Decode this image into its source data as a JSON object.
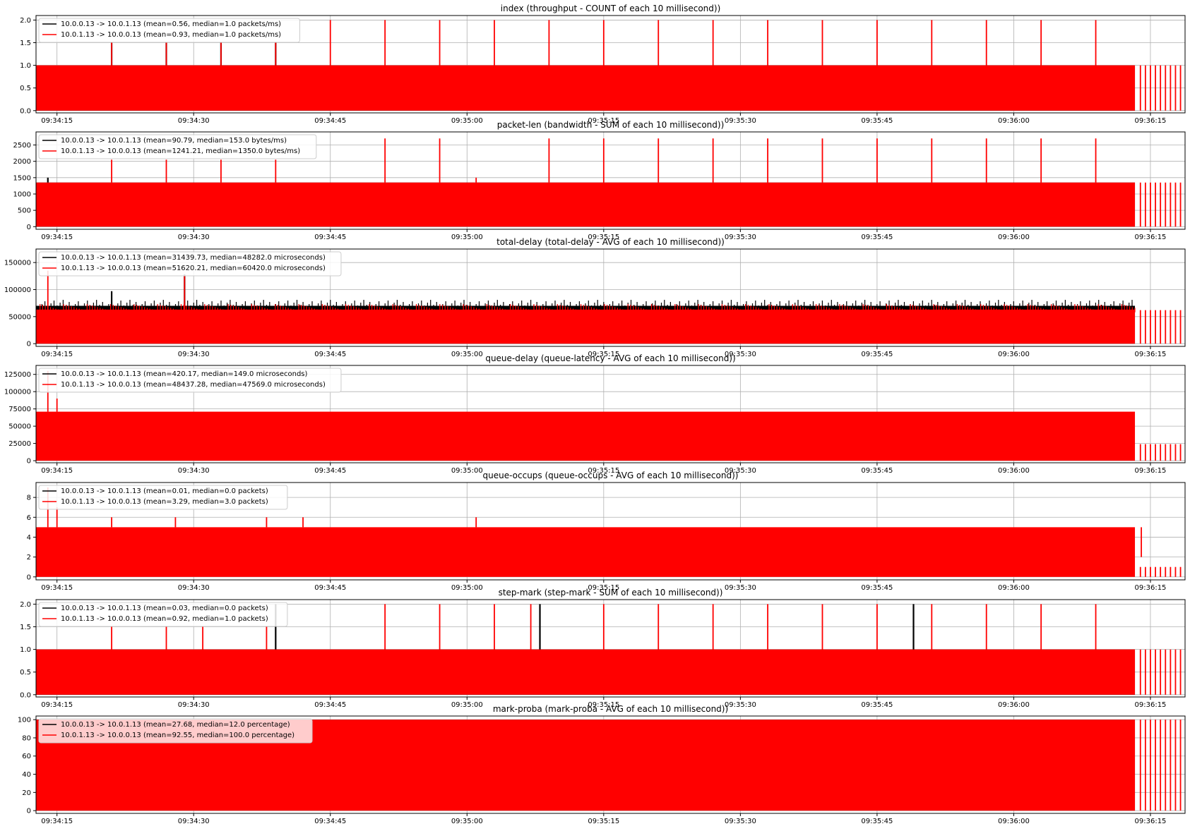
{
  "colors": {
    "flow1": "#000000",
    "flow2": "#ff0000",
    "grid": "#b0b0b0"
  },
  "chart_data": [
    {
      "type": "line",
      "title": "index (throughput - COUNT of each 10 millisecond))",
      "x_ticks": [
        "09:34:15",
        "09:34:30",
        "09:34:45",
        "09:35:00",
        "09:35:15",
        "09:35:30",
        "09:35:45",
        "09:36:00",
        "09:36:15"
      ],
      "y_ticks": [
        "0.0",
        "0.5",
        "1.0",
        "1.5",
        "2.0"
      ],
      "ylim": [
        -0.05,
        2.1
      ],
      "grid": true,
      "legend_position": "top-left",
      "series": [
        {
          "name": "10.0.0.13 -> 10.0.1.13 (mean=0.56, median=1.0 packets/ms)",
          "color": "#000000",
          "base": 1.0,
          "spikes": [
            [
              "09:34:21",
              1.5
            ],
            [
              "09:34:27",
              1.5
            ],
            [
              "09:34:33",
              1.5
            ],
            [
              "09:34:39",
              1.5
            ]
          ]
        },
        {
          "name": "10.0.1.13 -> 10.0.0.13 (mean=0.93, median=1.0 packets/ms)",
          "color": "#ff0000",
          "base": 1.0,
          "spikes": [
            [
              "09:34:21",
              1.5
            ],
            [
              "09:34:27",
              1.5
            ],
            [
              "09:34:33",
              1.5
            ],
            [
              "09:34:39",
              1.5
            ],
            [
              "09:34:45",
              2.0
            ],
            [
              "09:34:51",
              2.0
            ],
            [
              "09:34:57",
              2.0
            ],
            [
              "09:35:03",
              2.0
            ],
            [
              "09:35:09",
              2.0
            ],
            [
              "09:35:15",
              2.0
            ],
            [
              "09:35:21",
              2.0
            ],
            [
              "09:35:27",
              2.0
            ],
            [
              "09:35:33",
              2.0
            ],
            [
              "09:35:39",
              2.0
            ],
            [
              "09:35:45",
              2.0
            ],
            [
              "09:35:51",
              2.0
            ],
            [
              "09:35:57",
              2.0
            ],
            [
              "09:36:03",
              2.0
            ],
            [
              "09:36:09",
              2.0
            ]
          ],
          "tail_level": 1.0
        }
      ]
    },
    {
      "type": "line",
      "title": "packet-len (bandwidth - SUM of each 10 millisecond))",
      "x_ticks": [
        "09:34:15",
        "09:34:30",
        "09:34:45",
        "09:35:00",
        "09:35:15",
        "09:35:30",
        "09:35:45",
        "09:36:00",
        "09:36:15"
      ],
      "y_ticks": [
        "0",
        "500",
        "1000",
        "1500",
        "2000",
        "2500"
      ],
      "ylim": [
        -80,
        2900
      ],
      "grid": true,
      "legend_position": "top-left",
      "series": [
        {
          "name": "10.0.0.13 -> 10.0.1.13 (mean=90.79, median=153.0 bytes/ms)",
          "color": "#000000",
          "base": 1350,
          "spikes": [
            [
              "09:34:14",
              1500
            ]
          ]
        },
        {
          "name": "10.0.1.13 -> 10.0.0.13 (mean=1241.21, median=1350.0 bytes/ms)",
          "color": "#ff0000",
          "base": 1350,
          "spikes": [
            [
              "09:34:21",
              2050
            ],
            [
              "09:34:27",
              2050
            ],
            [
              "09:34:33",
              2050
            ],
            [
              "09:34:39",
              2050
            ],
            [
              "09:34:51",
              2700
            ],
            [
              "09:34:57",
              2700
            ],
            [
              "09:35:01",
              1500
            ],
            [
              "09:35:09",
              2700
            ],
            [
              "09:35:15",
              2700
            ],
            [
              "09:35:21",
              2700
            ],
            [
              "09:35:27",
              2700
            ],
            [
              "09:35:33",
              2700
            ],
            [
              "09:35:39",
              2700
            ],
            [
              "09:35:45",
              2700
            ],
            [
              "09:35:51",
              2700
            ],
            [
              "09:35:57",
              2700
            ],
            [
              "09:36:03",
              2700
            ],
            [
              "09:36:09",
              2700
            ]
          ],
          "tail_level": 1350
        }
      ]
    },
    {
      "type": "line",
      "title": "total-delay (total-delay - AVG of each 10 millisecond))",
      "x_ticks": [
        "09:34:15",
        "09:34:30",
        "09:34:45",
        "09:35:00",
        "09:35:15",
        "09:35:30",
        "09:35:45",
        "09:36:00",
        "09:36:15"
      ],
      "y_ticks": [
        "0",
        "50000",
        "100000",
        "150000"
      ],
      "ylim": [
        -5000,
        175000
      ],
      "grid": true,
      "legend_position": "top-left",
      "series": [
        {
          "name": "10.0.0.13 -> 10.0.1.13 (mean=31439.73, median=48282.0 microseconds)",
          "color": "#000000",
          "base": 70000,
          "spikes": [
            [
              "09:34:21",
              97000
            ],
            [
              "09:34:29",
              128000
            ]
          ]
        },
        {
          "name": "10.0.1.13 -> 10.0.0.13 (mean=51620.21, median=60420.0 microseconds)",
          "color": "#ff0000",
          "base": 63000,
          "spikes": [
            [
              "09:34:14",
              135000
            ],
            [
              "09:34:29",
              125000
            ]
          ],
          "tail_level": 62000
        }
      ]
    },
    {
      "type": "line",
      "title": "queue-delay (queue-latency - AVG of each 10 millisecond))",
      "x_ticks": [
        "09:34:15",
        "09:34:30",
        "09:34:45",
        "09:35:00",
        "09:35:15",
        "09:35:30",
        "09:35:45",
        "09:36:00",
        "09:36:15"
      ],
      "y_ticks": [
        "0",
        "25000",
        "50000",
        "75000",
        "100000",
        "125000"
      ],
      "ylim": [
        -3000,
        138000
      ],
      "grid": true,
      "legend_position": "top-left",
      "series": [
        {
          "name": "10.0.0.13 -> 10.0.1.13 (mean=420.17, median=149.0 microseconds)",
          "color": "#000000",
          "base": 0,
          "spikes": []
        },
        {
          "name": "10.0.1.13 -> 10.0.0.13 (mean=48437.28, median=47569.0 microseconds)",
          "color": "#ff0000",
          "base": 71000,
          "spikes": [
            [
              "09:34:14",
              130000
            ],
            [
              "09:34:15",
              90000
            ]
          ],
          "tail_level": 24000
        }
      ]
    },
    {
      "type": "line",
      "title": "queue-occups (queue-occups - AVG of each 10 millisecond))",
      "x_ticks": [
        "09:34:15",
        "09:34:30",
        "09:34:45",
        "09:35:00",
        "09:35:15",
        "09:35:30",
        "09:35:45",
        "09:36:00",
        "09:36:15"
      ],
      "y_ticks": [
        "0",
        "2",
        "4",
        "6",
        "8"
      ],
      "ylim": [
        -0.3,
        9.5
      ],
      "grid": true,
      "legend_position": "top-left",
      "series": [
        {
          "name": "10.0.0.13 -> 10.0.1.13 (mean=0.01, median=0.0 packets)",
          "color": "#000000",
          "base": 0,
          "spikes": []
        },
        {
          "name": "10.0.1.13 -> 10.0.0.13 (mean=3.29, median=3.0 packets)",
          "color": "#ff0000",
          "base": 5,
          "spikes": [
            [
              "09:34:14",
              9
            ],
            [
              "09:34:15",
              7
            ],
            [
              "09:34:21",
              6
            ],
            [
              "09:34:28",
              6
            ],
            [
              "09:34:38",
              6
            ],
            [
              "09:34:42",
              6
            ],
            [
              "09:35:01",
              6
            ],
            [
              "09:36:14",
              2
            ]
          ],
          "tail_level": 1
        }
      ]
    },
    {
      "type": "line",
      "title": "step-mark (step-mark - SUM of each 10 millisecond))",
      "x_ticks": [
        "09:34:15",
        "09:34:30",
        "09:34:45",
        "09:35:00",
        "09:35:15",
        "09:35:30",
        "09:35:45",
        "09:36:00",
        "09:36:15"
      ],
      "y_ticks": [
        "0.0",
        "0.5",
        "1.0",
        "1.5",
        "2.0"
      ],
      "ylim": [
        -0.05,
        2.1
      ],
      "grid": true,
      "legend_position": "top-left",
      "series": [
        {
          "name": "10.0.0.13 -> 10.0.1.13 (mean=0.03, median=0.0 packets)",
          "color": "#000000",
          "base": 1.0,
          "spikes": [
            [
              "09:34:39",
              2.0
            ],
            [
              "09:35:08",
              2.0
            ],
            [
              "09:35:49",
              2.0
            ]
          ]
        },
        {
          "name": "10.0.1.13 -> 10.0.0.13 (mean=0.92, median=1.0 packets)",
          "color": "#ff0000",
          "base": 1.0,
          "spikes": [
            [
              "09:34:21",
              1.5
            ],
            [
              "09:34:27",
              1.5
            ],
            [
              "09:34:31",
              1.5
            ],
            [
              "09:34:38",
              1.5
            ],
            [
              "09:34:51",
              2.0
            ],
            [
              "09:34:57",
              2.0
            ],
            [
              "09:35:03",
              2.0
            ],
            [
              "09:35:07",
              2.0
            ],
            [
              "09:35:15",
              2.0
            ],
            [
              "09:35:21",
              2.0
            ],
            [
              "09:35:27",
              2.0
            ],
            [
              "09:35:33",
              2.0
            ],
            [
              "09:35:39",
              2.0
            ],
            [
              "09:35:45",
              2.0
            ],
            [
              "09:35:51",
              2.0
            ],
            [
              "09:35:57",
              2.0
            ],
            [
              "09:36:03",
              2.0
            ],
            [
              "09:36:09",
              2.0
            ]
          ],
          "tail_level": 1.0
        }
      ]
    },
    {
      "type": "line",
      "title": "mark-proba (mark-proba - AVG of each 10 millisecond))",
      "x_ticks": [
        "09:34:15",
        "09:34:30",
        "09:34:45",
        "09:35:00",
        "09:35:15",
        "09:35:30",
        "09:35:45",
        "09:36:00",
        "09:36:15"
      ],
      "y_ticks": [
        "0",
        "20",
        "40",
        "60",
        "80",
        "100"
      ],
      "ylim": [
        -3,
        104
      ],
      "grid": true,
      "legend_position": "top-left",
      "series": [
        {
          "name": "10.0.0.13 -> 10.0.1.13 (mean=27.68, median=12.0 percentage)",
          "color": "#000000",
          "base": 100,
          "spikes": []
        },
        {
          "name": "10.0.1.13 -> 10.0.0.13 (mean=92.55, median=100.0 percentage)",
          "color": "#ff0000",
          "base": 100,
          "spikes": [],
          "tail_level": 100
        }
      ]
    }
  ]
}
